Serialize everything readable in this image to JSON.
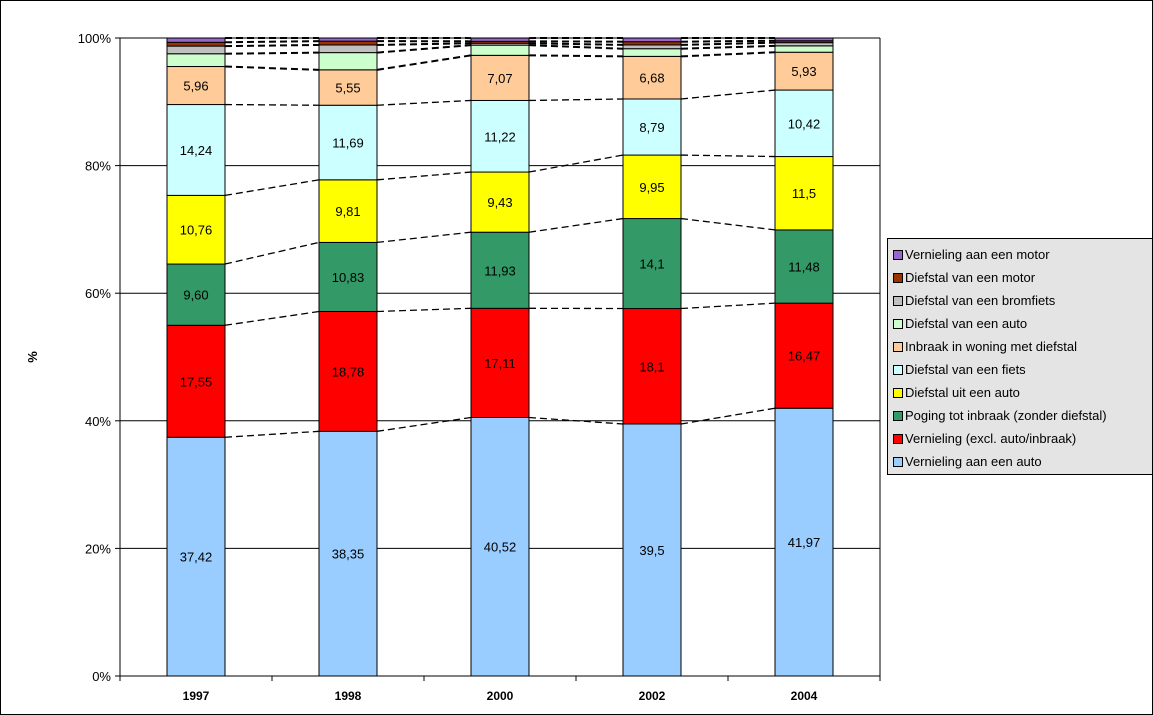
{
  "chart_data": {
    "type": "bar",
    "stacked": true,
    "ylabel": "%",
    "ylim": [
      0,
      100
    ],
    "yticks": [
      "0%",
      "20%",
      "40%",
      "60%",
      "80%",
      "100%"
    ],
    "grid": true,
    "legend_position": "right",
    "categories": [
      "1997",
      "1998",
      "2000",
      "2002",
      "2004"
    ],
    "series": [
      {
        "name": "Vernieling aan een auto",
        "color": "#99ccff",
        "values": [
          37.42,
          38.35,
          40.52,
          39.5,
          41.97
        ],
        "labels": [
          "37,42",
          "38,35",
          "40,52",
          "39,5",
          "41,97"
        ]
      },
      {
        "name": "Vernieling (excl. auto/inbraak)",
        "color": "#ff0000",
        "values": [
          17.55,
          18.78,
          17.11,
          18.1,
          16.47
        ],
        "labels": [
          "17,55",
          "18,78",
          "17,11",
          "18,1",
          "16,47"
        ]
      },
      {
        "name": "Poging tot inbraak (zonder diefstal)",
        "color": "#339966",
        "values": [
          9.6,
          10.83,
          11.93,
          14.1,
          11.48
        ],
        "labels": [
          "9,60",
          "10,83",
          "11,93",
          "14,1",
          "11,48"
        ]
      },
      {
        "name": "Diefstal uit een auto",
        "color": "#ffff00",
        "values": [
          10.76,
          9.81,
          9.43,
          9.95,
          11.5
        ],
        "labels": [
          "10,76",
          "9,81",
          "9,43",
          "9,95",
          "11,5"
        ]
      },
      {
        "name": "Diefstal van een fiets",
        "color": "#ccffff",
        "values": [
          14.24,
          11.69,
          11.22,
          8.79,
          10.42
        ],
        "labels": [
          "14,24",
          "11,69",
          "11,22",
          "8,79",
          "10,42"
        ]
      },
      {
        "name": "Inbraak in woning met diefstal",
        "color": "#ffcc99",
        "values": [
          5.96,
          5.55,
          7.07,
          6.68,
          5.93
        ],
        "labels": [
          "5,96",
          "5,55",
          "7,07",
          "6,68",
          "5,93"
        ]
      },
      {
        "name": "Diefstal van een auto",
        "color": "#ccffcc",
        "values": [
          2.0,
          2.7,
          1.6,
          1.2,
          1.0
        ]
      },
      {
        "name": "Diefstal van een bromfiets",
        "color": "#c0c0c0",
        "values": [
          1.2,
          1.2,
          0.3,
          0.6,
          0.5
        ]
      },
      {
        "name": "Diefstal van een motor",
        "color": "#993300",
        "values": [
          0.6,
          0.6,
          0.3,
          0.5,
          0.3
        ]
      },
      {
        "name": "Vernieling aan een motor",
        "color": "#9966cc",
        "values": [
          0.67,
          0.49,
          0.51,
          0.58,
          0.43
        ]
      }
    ]
  }
}
